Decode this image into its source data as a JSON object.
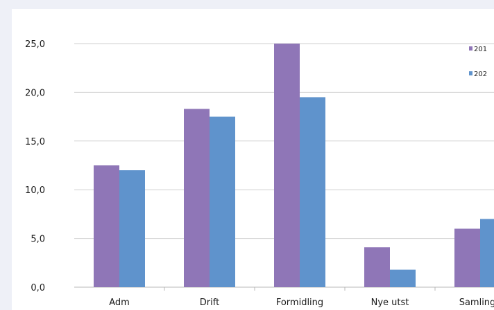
{
  "chart_data": {
    "type": "bar",
    "categories": [
      "Adm",
      "Drift",
      "Formidling",
      "Nye utst",
      "Samlinga"
    ],
    "series": [
      {
        "name": "201",
        "color": "#8f76b7",
        "values": [
          12.5,
          18.3,
          25.0,
          4.1,
          6.0
        ]
      },
      {
        "name": "202",
        "color": "#5f93cc",
        "values": [
          12.0,
          17.5,
          19.5,
          1.8,
          7.0
        ]
      }
    ],
    "ylim": [
      0,
      25
    ],
    "yticks": [
      "0,0",
      "5,0",
      "10,0",
      "15,0",
      "20,0",
      "25,0"
    ],
    "grid": true,
    "legend": "top-right",
    "title": "",
    "xlabel": "",
    "ylabel": ""
  }
}
